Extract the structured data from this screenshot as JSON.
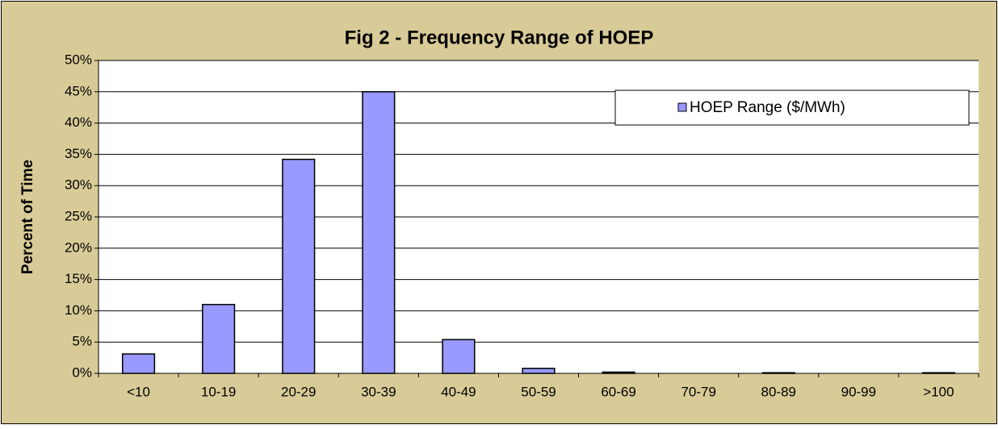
{
  "chart_data": {
    "type": "bar",
    "title": "Fig 2 - Frequency Range of HOEP",
    "ylabel": "Percent of Time",
    "categories": [
      "<10",
      "10-19",
      "20-29",
      "30-39",
      "40-49",
      "50-59",
      "60-69",
      "70-79",
      "80-89",
      "90-99",
      ">100"
    ],
    "series": [
      {
        "name": "HOEP Range ($/MWh)",
        "color": "#9999ff",
        "values": [
          3.1,
          11,
          34.2,
          45,
          5.4,
          0.8,
          0.2,
          0,
          0.1,
          0,
          0.1
        ]
      }
    ],
    "ylim": [
      0,
      50
    ],
    "yticks": [
      {
        "value": 0,
        "label": "0%"
      },
      {
        "value": 5,
        "label": "5%"
      },
      {
        "value": 10,
        "label": "10%"
      },
      {
        "value": 15,
        "label": "15%"
      },
      {
        "value": 20,
        "label": "20%"
      },
      {
        "value": 25,
        "label": "25%"
      },
      {
        "value": 30,
        "label": "30%"
      },
      {
        "value": 35,
        "label": "35%"
      },
      {
        "value": 40,
        "label": "40%"
      },
      {
        "value": 45,
        "label": "45%"
      },
      {
        "value": 50,
        "label": "50%"
      }
    ],
    "grid": true,
    "legend": "upper right"
  }
}
